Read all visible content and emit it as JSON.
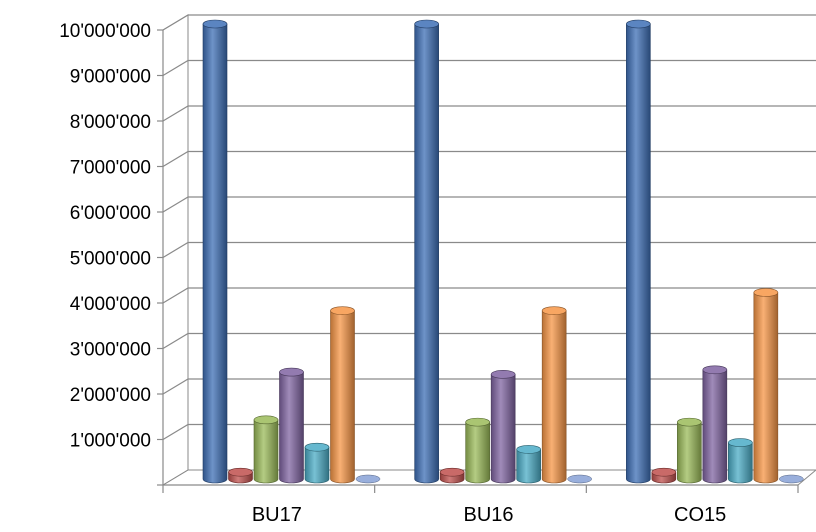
{
  "chart_data": {
    "type": "bar",
    "style": "3d-cylinder",
    "categories": [
      "BU17",
      "BU16",
      "CO15"
    ],
    "series": [
      {
        "color": "#3E6FB6",
        "values": [
          10000000,
          10000000,
          10000000
        ]
      },
      {
        "color": "#C0504D",
        "values": [
          150000,
          150000,
          150000
        ]
      },
      {
        "color": "#9BBB59",
        "values": [
          1300000,
          1250000,
          1250000
        ]
      },
      {
        "color": "#8064A2",
        "values": [
          2350000,
          2300000,
          2400000
        ]
      },
      {
        "color": "#4BACC6",
        "values": [
          700000,
          650000,
          800000
        ]
      },
      {
        "color": "#F79646",
        "values": [
          3700000,
          3700000,
          4100000
        ]
      },
      {
        "color": "#8EA6D8",
        "values": [
          10000,
          10000,
          10000
        ]
      }
    ],
    "ylim": [
      0,
      10000000
    ],
    "y_ticks": [
      "1'000'000",
      "2'000'000",
      "3'000'000",
      "4'000'000",
      "5'000'000",
      "6'000'000",
      "7'000'000",
      "8'000'000",
      "9'000'000",
      "10'000'000"
    ],
    "grid": true,
    "legend": "none"
  }
}
